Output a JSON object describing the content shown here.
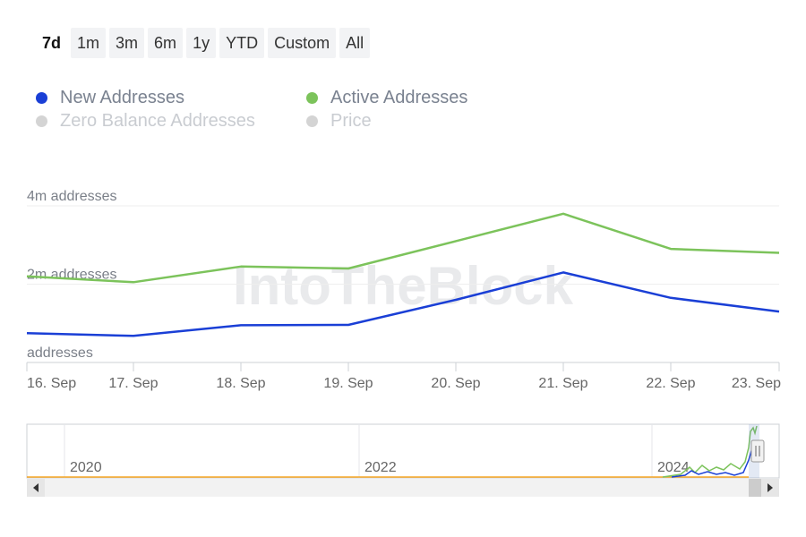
{
  "range_selector": {
    "buttons": [
      "7d",
      "1m",
      "3m",
      "6m",
      "1y",
      "YTD",
      "Custom",
      "All"
    ],
    "active": "7d"
  },
  "legend": [
    {
      "label": "New Addresses",
      "color": "#1a3fd6",
      "enabled": true
    },
    {
      "label": "Active Addresses",
      "color": "#7cc35b",
      "enabled": true
    },
    {
      "label": "Zero Balance Addresses",
      "color": "#d4d4d4",
      "enabled": false
    },
    {
      "label": "Price",
      "color": "#d4d4d4",
      "enabled": false
    }
  ],
  "watermark": "IntoTheBlock",
  "chart_data": {
    "type": "line",
    "x": [
      "16. Sep",
      "17. Sep",
      "18. Sep",
      "19. Sep",
      "20. Sep",
      "21. Sep",
      "22. Sep",
      "23. Sep"
    ],
    "series": [
      {
        "name": "New Addresses",
        "color": "#1a3fd6",
        "values": [
          0.75,
          0.68,
          0.95,
          0.96,
          1.6,
          2.3,
          1.65,
          1.3
        ]
      },
      {
        "name": "Active Addresses",
        "color": "#7cc35b",
        "values": [
          2.2,
          2.05,
          2.45,
          2.4,
          3.1,
          3.8,
          2.9,
          2.8
        ]
      }
    ],
    "ylim": [
      0,
      4
    ],
    "y_ticks": [
      "addresses",
      "2m addresses",
      "4m addresses"
    ],
    "grid": true,
    "legend_position": "top-left",
    "navigator": {
      "labels": [
        "2020",
        "2022",
        "2024"
      ],
      "price_color": "#f5a623"
    }
  }
}
